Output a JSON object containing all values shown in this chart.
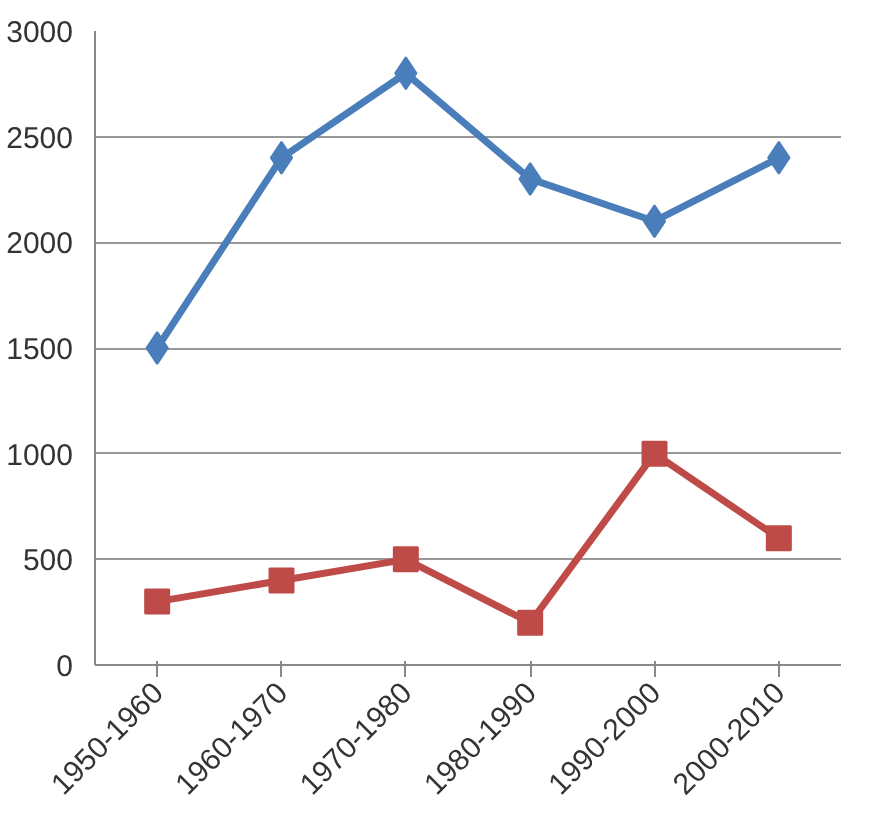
{
  "chart_data": {
    "type": "line",
    "categories": [
      "1950-1960",
      "1960-1970",
      "1970-1980",
      "1980-1990",
      "1990-2000",
      "2000-2010"
    ],
    "series": [
      {
        "color": "#4a7ebb",
        "marker": "diamond",
        "values": [
          1500,
          2400,
          2800,
          2300,
          2100,
          2400
        ]
      },
      {
        "color": "#be4b48",
        "marker": "square",
        "values": [
          300,
          400,
          500,
          200,
          1000,
          600
        ]
      }
    ],
    "ylim": [
      0,
      3000
    ],
    "yticks": [
      0,
      500,
      1000,
      1500,
      2000,
      2500,
      3000
    ],
    "grid": "y",
    "line_style": "solid"
  }
}
